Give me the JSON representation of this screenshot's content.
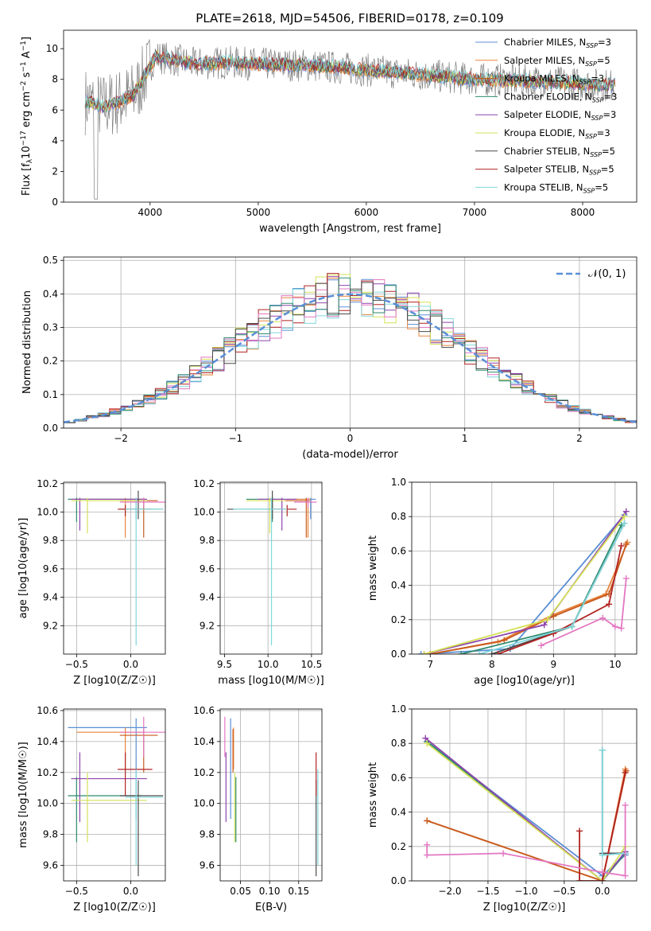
{
  "figure": {
    "title": "PLATE=2618, MJD=54506, FIBERID=0178, z=0.109"
  },
  "colors": {
    "Chabrier MILES": "#5b8fd6",
    "Salpeter MILES": "#e8853d",
    "Kroupa MILES": "#c85a1e",
    "Chabrier ELODIE": "#2e8b6e",
    "Salpeter ELODIE": "#8e44ad",
    "Kroupa ELODIE": "#d4e157",
    "Chabrier STELIB": "#4a4a4a",
    "Salpeter STELIB": "#b22222",
    "Kroupa STELIB": "#80d8dc",
    "pink": "#e377c2",
    "gauss": "#5b8fd6",
    "data_spectrum": "#808080"
  },
  "chart_data": [
    {
      "id": "spectrum",
      "type": "line",
      "title": "PLATE=2618, MJD=54506, FIBERID=0178, z=0.109",
      "xlabel": "wavelength [Angstrom, rest frame]",
      "ylabel": "Flux [f_λ10^-17 erg cm^-2 s^-1 A^-1]",
      "xlim": [
        3200,
        8500
      ],
      "ylim": [
        0,
        11.2
      ],
      "xticks": [
        4000,
        5000,
        6000,
        7000,
        8000
      ],
      "yticks": [
        0,
        2,
        4,
        6,
        8,
        10
      ],
      "legend_position": "top-right",
      "legend": [
        "Chabrier MILES, N_SSP=3",
        "Salpeter MILES, N_SSP=5",
        "Kroupa MILES, N_SSP=3",
        "Chabrier ELODIE, N_SSP=3",
        "Salpeter ELODIE, N_SSP=3",
        "Kroupa ELODIE, N_SSP=3",
        "Chabrier STELIB, N_SSP=5",
        "Salpeter STELIB, N_SSP=5",
        "Kroupa STELIB, N_SSP=5"
      ],
      "continuum_x": [
        3400,
        3550,
        3700,
        3850,
        3950,
        4050,
        4200,
        4400,
        4700,
        5000,
        5500,
        6000,
        6500,
        7000,
        7500,
        8000,
        8300
      ],
      "continuum_y": [
        6.6,
        6.2,
        6.5,
        7.0,
        8.2,
        9.5,
        9.3,
        9.0,
        9.1,
        9.0,
        8.9,
        8.6,
        8.3,
        8.0,
        7.9,
        7.7,
        7.6
      ],
      "grid": false
    },
    {
      "id": "residuals",
      "type": "line",
      "xlabel": "(data-model)/error",
      "ylabel": "Normed distribution",
      "xlim": [
        -2.5,
        2.5
      ],
      "ylim": [
        0,
        0.51
      ],
      "xticks": [
        -2,
        -1,
        0,
        1,
        2
      ],
      "yticks": [
        0.0,
        0.1,
        0.2,
        0.3,
        0.4,
        0.5
      ],
      "legend": [
        "𝒩(0, 1)"
      ],
      "legend_position": "top-right",
      "grid": true
    },
    {
      "id": "age_vs_Z",
      "type": "scatter",
      "xlabel": "Z [log10(Z/Z☉)]",
      "ylabel": "age [log10(age/yr)]",
      "xlim": [
        -0.62,
        0.32
      ],
      "ylim": [
        9.0,
        10.21
      ],
      "xticks": [
        -0.5,
        0.0
      ],
      "yticks": [
        9.2,
        9.4,
        9.6,
        9.8,
        10.0,
        10.2
      ],
      "grid": true
    },
    {
      "id": "age_vs_mass",
      "type": "scatter",
      "xlabel": "mass [log10(M/M☉)]",
      "xlim": [
        9.45,
        10.62
      ],
      "ylim": [
        9.0,
        10.21
      ],
      "xticks": [
        9.5,
        10.0,
        10.5
      ],
      "yticks": [
        9.2,
        9.4,
        9.6,
        9.8,
        10.0,
        10.2
      ],
      "grid": true
    },
    {
      "id": "mass_weight_vs_age",
      "type": "line",
      "xlabel": "age [log10(age/yr)]",
      "ylabel": "mass weight",
      "xlim": [
        6.7,
        10.35
      ],
      "ylim": [
        0,
        1.0
      ],
      "xticks": [
        7,
        8,
        9,
        10
      ],
      "yticks": [
        0.0,
        0.2,
        0.4,
        0.6,
        0.8,
        1.0
      ],
      "grid": true
    },
    {
      "id": "mass_vs_Z",
      "type": "scatter",
      "xlabel": "Z [log10(Z/Z☉)]",
      "ylabel": "mass [log10(M/M☉)]",
      "xlim": [
        -0.62,
        0.32
      ],
      "ylim": [
        9.5,
        10.61
      ],
      "xticks": [
        -0.5,
        0.0
      ],
      "yticks": [
        9.6,
        9.8,
        10.0,
        10.2,
        10.4,
        10.6
      ],
      "grid": true
    },
    {
      "id": "mass_vs_ebv",
      "type": "scatter",
      "xlabel": "E(B-V)",
      "xlim": [
        0.015,
        0.19
      ],
      "ylim": [
        9.5,
        10.61
      ],
      "xticks": [
        0.05,
        0.1,
        0.15
      ],
      "xticklabels": [
        "0.05",
        "0.10",
        "0.15"
      ],
      "yticks": [
        9.6,
        9.8,
        10.0,
        10.2,
        10.4,
        10.6
      ],
      "grid": true
    },
    {
      "id": "mass_weight_vs_Z",
      "type": "line",
      "xlabel": "Z [log10(Z/Z☉)]",
      "ylabel": "mass weight",
      "xlim": [
        -2.5,
        0.45
      ],
      "ylim": [
        0,
        1.0
      ],
      "xticks": [
        -2.0,
        -1.5,
        -1.0,
        -0.5,
        0.0
      ],
      "yticks": [
        0.0,
        0.2,
        0.4,
        0.6,
        0.8,
        1.0
      ],
      "grid": true
    }
  ],
  "fits": [
    {
      "name": "Chabrier MILES",
      "color": "#5b8fd6",
      "Z": 0.05,
      "age": 10.09,
      "mass": 10.49,
      "ebv": 0.033,
      "zerr": [
        -0.58,
        0.15
      ],
      "ageerr": [
        9.95,
        10.1
      ],
      "masserr": [
        9.9,
        10.55
      ],
      "wage": [
        [
          6.85,
          0.0
        ],
        [
          8.3,
          0.03
        ],
        [
          10.15,
          0.81
        ]
      ],
      "wz": [
        [
          -2.3,
          0.81
        ],
        [
          0.0,
          0.03
        ],
        [
          0.3,
          0.15
        ]
      ]
    },
    {
      "name": "Salpeter MILES",
      "color": "#e8853d",
      "Z": -0.05,
      "age": 10.09,
      "mass": 10.46,
      "ebv": 0.038,
      "zerr": [
        -0.5,
        0.1
      ],
      "ageerr": [
        9.82,
        10.1
      ],
      "masserr": [
        10.22,
        10.49
      ],
      "wage": [
        [
          7.0,
          0.0
        ],
        [
          8.1,
          0.07
        ],
        [
          9.0,
          0.23
        ],
        [
          9.85,
          0.35
        ],
        [
          10.2,
          0.65
        ]
      ],
      "wz": [
        [
          -2.3,
          0.35
        ],
        [
          0.0,
          0.0
        ],
        [
          0.3,
          0.65
        ]
      ]
    },
    {
      "name": "Kroupa MILES",
      "color": "#c85a1e",
      "Z": 0.12,
      "age": 10.08,
      "mass": 10.44,
      "ebv": 0.037,
      "zerr": [
        -0.1,
        0.25
      ],
      "ageerr": [
        9.82,
        10.1
      ],
      "masserr": [
        10.2,
        10.48
      ],
      "wage": [
        [
          7.0,
          0.0
        ],
        [
          8.2,
          0.08
        ],
        [
          9.0,
          0.22
        ],
        [
          9.9,
          0.35
        ],
        [
          10.18,
          0.64
        ]
      ],
      "wz": [
        [
          -2.3,
          0.35
        ],
        [
          0.0,
          0.0
        ],
        [
          0.31,
          0.64
        ]
      ]
    },
    {
      "name": "Chabrier ELODIE",
      "color": "#2e8b6e",
      "Z": -0.5,
      "age": 10.09,
      "mass": 10.05,
      "ebv": 0.042,
      "zerr": [
        -0.58,
        0.1
      ],
      "ageerr": [
        9.93,
        10.1
      ],
      "masserr": [
        9.75,
        10.17
      ],
      "wage": [
        [
          7.5,
          0.0
        ],
        [
          9.3,
          0.16
        ],
        [
          10.1,
          0.75
        ]
      ],
      "wz": [
        [
          -2.3,
          0.81
        ],
        [
          0.0,
          0.0
        ],
        [
          0.3,
          0.16
        ]
      ]
    },
    {
      "name": "Salpeter ELODIE",
      "color": "#8e44ad",
      "Z": -0.47,
      "age": 10.09,
      "mass": 10.16,
      "ebv": 0.025,
      "zerr": [
        -0.55,
        0.15
      ],
      "ageerr": [
        9.87,
        10.1
      ],
      "masserr": [
        9.88,
        10.33
      ],
      "wage": [
        [
          6.9,
          0.0
        ],
        [
          8.85,
          0.17
        ],
        [
          10.18,
          0.83
        ]
      ],
      "wz": [
        [
          -2.32,
          0.83
        ],
        [
          0.0,
          0.0
        ],
        [
          0.3,
          0.17
        ]
      ]
    },
    {
      "name": "Kroupa ELODIE",
      "color": "#d4e157",
      "Z": -0.4,
      "age": 10.08,
      "mass": 10.02,
      "ebv": 0.04,
      "zerr": [
        -0.55,
        0.15
      ],
      "ageerr": [
        9.85,
        10.1
      ],
      "masserr": [
        9.75,
        10.2
      ],
      "wage": [
        [
          6.9,
          0.0
        ],
        [
          8.9,
          0.2
        ],
        [
          10.15,
          0.8
        ]
      ],
      "wz": [
        [
          -2.3,
          0.8
        ],
        [
          0.0,
          0.0
        ],
        [
          0.3,
          0.2
        ]
      ]
    },
    {
      "name": "Chabrier STELIB",
      "color": "#4a4a4a",
      "Z": 0.07,
      "age": 10.02,
      "mass": 10.05,
      "ebv": 0.18,
      "zerr": [
        -0.1,
        0.3
      ],
      "ageerr": [
        9.95,
        10.15
      ],
      "masserr": [
        9.53,
        10.15
      ],
      "wage": [
        [
          8.0,
          0.0
        ],
        [
          9.3,
          0.16
        ],
        [
          10.15,
          0.76
        ]
      ],
      "wz": [
        [
          0.0,
          0.76
        ],
        [
          0.0,
          0.16
        ],
        [
          0.3,
          0.16
        ]
      ]
    },
    {
      "name": "Salpeter STELIB",
      "color": "#b22222",
      "Z": -0.05,
      "age": 10.02,
      "mass": 10.22,
      "ebv": 0.18,
      "zerr": [
        -0.12,
        0.2
      ],
      "ageerr": [
        9.97,
        10.05
      ],
      "masserr": [
        10.05,
        10.33
      ],
      "wage": [
        [
          8.1,
          0.0
        ],
        [
          9.0,
          0.12
        ],
        [
          9.9,
          0.29
        ],
        [
          10.1,
          0.63
        ]
      ],
      "wz": [
        [
          -0.3,
          0.29
        ],
        [
          -0.3,
          0.0
        ],
        [
          0.0,
          0.0
        ],
        [
          0.3,
          0.63
        ]
      ]
    },
    {
      "name": "Kroupa STELIB",
      "color": "#80d8dc",
      "Z": 0.05,
      "age": 10.02,
      "mass": 10.04,
      "ebv": 0.183,
      "zerr": [
        -0.05,
        0.3
      ],
      "ageerr": [
        9.06,
        10.1
      ],
      "masserr": [
        9.6,
        10.22
      ],
      "wage": [
        [
          7.8,
          0.0
        ],
        [
          9.3,
          0.16
        ],
        [
          10.15,
          0.76
        ]
      ],
      "wz": [
        [
          0.0,
          0.76
        ],
        [
          0.0,
          0.15
        ],
        [
          0.3,
          0.16
        ]
      ]
    },
    {
      "name": "pink",
      "color": "#e377c2",
      "Z": 0.12,
      "age": 10.07,
      "mass": 10.46,
      "ebv": 0.023,
      "zerr": [
        -0.1,
        0.35
      ],
      "ageerr": [
        10.03,
        10.1
      ],
      "masserr": [
        10.3,
        10.56
      ],
      "wage": [
        [
          8.8,
          0.05
        ],
        [
          9.8,
          0.21
        ],
        [
          10.0,
          0.16
        ],
        [
          10.1,
          0.15
        ],
        [
          10.18,
          0.44
        ]
      ],
      "wz": [
        [
          -2.3,
          0.21
        ],
        [
          -2.3,
          0.15
        ],
        [
          -1.3,
          0.16
        ],
        [
          0.0,
          0.05
        ],
        [
          0.3,
          0.03
        ],
        [
          0.3,
          0.44
        ]
      ]
    }
  ]
}
